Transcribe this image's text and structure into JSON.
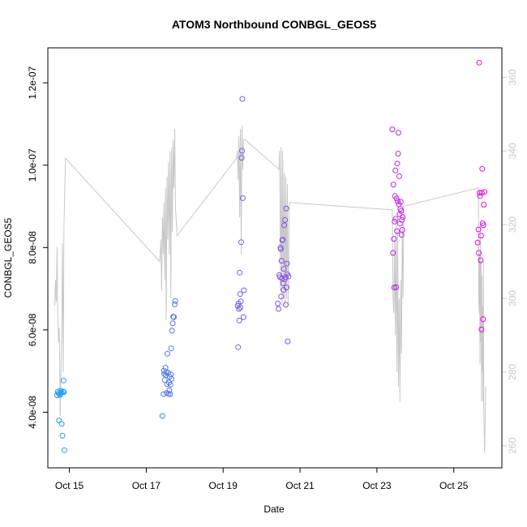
{
  "chart_data": {
    "type": "scatter",
    "title": "ATOM3 Northbound CONBGL_GEOS5",
    "xlabel": "Date",
    "ylabel": "CONBGL_GEOS5",
    "x_unit": "days (Oct)",
    "xlim": [
      14.44,
      26.25
    ],
    "ylim": [
      2.65e-08,
      1.285e-07
    ],
    "y2lim": [
      254.0,
      368.0
    ],
    "x_ticks": [
      15,
      17,
      19,
      21,
      23,
      25
    ],
    "x_tick_labels": [
      "Oct 15",
      "Oct 17",
      "Oct 19",
      "Oct 21",
      "Oct 23",
      "Oct 25"
    ],
    "y_ticks": [
      4e-08,
      6e-08,
      8e-08,
      1e-07,
      1.2e-07
    ],
    "y_tick_labels": [
      "4.0e-08",
      "6.0e-08",
      "8.0e-08",
      "1.0e-07",
      "1.2e-07"
    ],
    "y2_ticks": [
      260,
      280,
      300,
      320,
      340,
      360
    ],
    "y2_tick_labels": [
      "260",
      "280",
      "300",
      "320",
      "340",
      "360"
    ],
    "grid": false,
    "legend": "none",
    "series": [
      {
        "name": "CONBGL_GEOS5",
        "kind": "points",
        "color_from": "#1aa3ee",
        "color_to": "#f000e0",
        "points": [
          [
            14.68,
            4.41e-08
          ],
          [
            14.7,
            4.5e-08
          ],
          [
            14.72,
            4.46e-08
          ],
          [
            14.73,
            3.8e-08
          ],
          [
            14.75,
            4.42e-08
          ],
          [
            14.77,
            4.52e-08
          ],
          [
            14.78,
            4.45e-08
          ],
          [
            14.8,
            4.48e-08
          ],
          [
            14.8,
            3.72e-08
          ],
          [
            14.82,
            3.43e-08
          ],
          [
            14.84,
            4.5e-08
          ],
          [
            14.85,
            4.77e-08
          ],
          [
            14.86,
            4.49e-08
          ],
          [
            14.87,
            3.08e-08
          ],
          [
            17.42,
            3.91e-08
          ],
          [
            17.45,
            4.44e-08
          ],
          [
            17.46,
            5.01e-08
          ],
          [
            17.47,
            4.93e-08
          ],
          [
            17.48,
            4.78e-08
          ],
          [
            17.5,
            5.08e-08
          ],
          [
            17.51,
            4.9e-08
          ],
          [
            17.52,
            4.97e-08
          ],
          [
            17.53,
            4.47e-08
          ],
          [
            17.54,
            4.68e-08
          ],
          [
            17.55,
            5.42e-08
          ],
          [
            17.57,
            4.96e-08
          ],
          [
            17.58,
            4.45e-08
          ],
          [
            17.59,
            4.72e-08
          ],
          [
            17.6,
            4.53e-08
          ],
          [
            17.61,
            4.86e-08
          ],
          [
            17.62,
            4.44e-08
          ],
          [
            17.63,
            4.67e-08
          ],
          [
            17.64,
            4.92e-08
          ],
          [
            17.65,
            5.55e-08
          ],
          [
            17.66,
            4.81e-08
          ],
          [
            17.67,
            5.98e-08
          ],
          [
            17.69,
            6.16e-08
          ],
          [
            17.7,
            6.32e-08
          ],
          [
            17.72,
            6.31e-08
          ],
          [
            17.74,
            6.62e-08
          ],
          [
            17.75,
            6.7e-08
          ],
          [
            19.38,
            6.58e-08
          ],
          [
            19.39,
            5.58e-08
          ],
          [
            19.4,
            6.64e-08
          ],
          [
            19.41,
            6.51e-08
          ],
          [
            19.42,
            6.23e-08
          ],
          [
            19.43,
            7.39e-08
          ],
          [
            19.44,
            6.87e-08
          ],
          [
            19.45,
            6.54e-08
          ],
          [
            19.46,
            6.69e-08
          ],
          [
            19.47,
            8.13e-08
          ],
          [
            19.48,
            1.018e-07
          ],
          [
            19.49,
            1.035e-07
          ],
          [
            19.5,
            1.161e-07
          ],
          [
            19.51,
            9.2e-08
          ],
          [
            19.53,
            6.31e-08
          ],
          [
            19.54,
            6.96e-08
          ],
          [
            20.42,
            6.64e-08
          ],
          [
            20.44,
            6.51e-08
          ],
          [
            20.46,
            7.33e-08
          ],
          [
            20.48,
            7.28e-08
          ],
          [
            20.49,
            8e-08
          ],
          [
            20.5,
            7.96e-08
          ],
          [
            20.51,
            6.81e-08
          ],
          [
            20.52,
            7.68e-08
          ],
          [
            20.53,
            7.25e-08
          ],
          [
            20.54,
            8.18e-08
          ],
          [
            20.55,
            8.19e-08
          ],
          [
            20.56,
            7.13e-08
          ],
          [
            20.57,
            6.97e-08
          ],
          [
            20.58,
            7.48e-08
          ],
          [
            20.59,
            8.54e-08
          ],
          [
            20.6,
            7.23e-08
          ],
          [
            20.61,
            8.67e-08
          ],
          [
            20.62,
            7.28e-08
          ],
          [
            20.63,
            6.61e-08
          ],
          [
            20.64,
            8.95e-08
          ],
          [
            20.65,
            7.03e-08
          ],
          [
            20.66,
            7.61e-08
          ],
          [
            20.67,
            7.35e-08
          ],
          [
            20.68,
            5.72e-08
          ],
          [
            20.7,
            7.3e-08
          ],
          [
            23.4,
            1.087e-07
          ],
          [
            23.42,
            7.87e-08
          ],
          [
            23.43,
            9.53e-08
          ],
          [
            23.44,
            8.21e-08
          ],
          [
            23.45,
            7.03e-08
          ],
          [
            23.46,
            8.63e-08
          ],
          [
            23.47,
            9.25e-08
          ],
          [
            23.48,
            9.87e-08
          ],
          [
            23.49,
            8.7e-08
          ],
          [
            23.5,
            7.04e-08
          ],
          [
            23.51,
            9.19e-08
          ],
          [
            23.52,
            8.4e-08
          ],
          [
            23.53,
            1.004e-07
          ],
          [
            23.54,
            9.12e-08
          ],
          [
            23.55,
            1.028e-07
          ],
          [
            23.56,
            1.079e-07
          ],
          [
            23.57,
            9.05e-08
          ],
          [
            23.58,
            9.73e-08
          ],
          [
            23.59,
            8.81e-08
          ],
          [
            23.6,
            8.58e-08
          ],
          [
            23.61,
            8.94e-08
          ],
          [
            23.62,
            9.11e-08
          ],
          [
            23.63,
            8.89e-08
          ],
          [
            23.64,
            8.31e-08
          ],
          [
            23.65,
            8.67e-08
          ],
          [
            23.66,
            8.43e-08
          ],
          [
            23.67,
            8.74e-08
          ],
          [
            25.62,
            8.12e-08
          ],
          [
            25.64,
            8.44e-08
          ],
          [
            25.65,
            7.87e-08
          ],
          [
            25.66,
            1.249e-07
          ],
          [
            25.67,
            9.33e-08
          ],
          [
            25.68,
            9.25e-08
          ],
          [
            25.7,
            7.69e-08
          ],
          [
            25.71,
            8.29e-08
          ],
          [
            25.72,
            6.01e-08
          ],
          [
            25.73,
            9.33e-08
          ],
          [
            25.74,
            9.91e-08
          ],
          [
            25.75,
            8.59e-08
          ],
          [
            25.76,
            6.26e-08
          ],
          [
            25.77,
            8.54e-08
          ],
          [
            25.78,
            9.04e-08
          ],
          [
            25.8,
            9.35e-08
          ]
        ]
      },
      {
        "name": "secondary-trace",
        "kind": "line",
        "axis": "right",
        "color": "#c8c8c8",
        "points": [
          [
            14.62,
            298
          ],
          [
            14.64,
            305
          ],
          [
            14.66,
            299
          ],
          [
            14.68,
            314
          ],
          [
            14.7,
            295
          ],
          [
            14.72,
            288
          ],
          [
            14.74,
            292
          ],
          [
            14.76,
            268
          ],
          [
            14.78,
            279
          ],
          [
            14.8,
            290
          ],
          [
            14.82,
            315
          ],
          [
            14.84,
            280
          ],
          [
            14.86,
            320
          ],
          [
            14.9,
            338
          ],
          [
            17.35,
            310
          ],
          [
            17.38,
            316
          ],
          [
            17.4,
            302
          ],
          [
            17.42,
            322
          ],
          [
            17.44,
            312
          ],
          [
            17.46,
            326
          ],
          [
            17.48,
            305
          ],
          [
            17.5,
            330
          ],
          [
            17.52,
            294
          ],
          [
            17.54,
            333
          ],
          [
            17.56,
            316
          ],
          [
            17.58,
            337
          ],
          [
            17.6,
            312
          ],
          [
            17.62,
            340
          ],
          [
            17.64,
            300
          ],
          [
            17.66,
            341
          ],
          [
            17.68,
            318
          ],
          [
            17.7,
            343
          ],
          [
            17.72,
            330
          ],
          [
            17.74,
            346
          ],
          [
            17.76,
            325
          ],
          [
            17.8,
            317
          ],
          [
            19.35,
            338
          ],
          [
            19.37,
            340
          ],
          [
            19.39,
            332
          ],
          [
            19.41,
            344
          ],
          [
            19.43,
            322
          ],
          [
            19.45,
            346
          ],
          [
            19.47,
            312
          ],
          [
            19.49,
            347
          ],
          [
            19.51,
            335
          ],
          [
            19.53,
            343
          ],
          [
            19.58,
            343
          ],
          [
            20.45,
            335
          ],
          [
            20.47,
            340
          ],
          [
            20.49,
            302
          ],
          [
            20.51,
            341
          ],
          [
            20.53,
            298
          ],
          [
            20.55,
            340
          ],
          [
            20.57,
            300
          ],
          [
            20.59,
            334
          ],
          [
            20.61,
            298
          ],
          [
            20.63,
            333
          ],
          [
            20.65,
            300
          ],
          [
            20.67,
            331
          ],
          [
            20.69,
            298
          ],
          [
            20.72,
            326
          ],
          [
            23.4,
            324
          ],
          [
            23.42,
            300
          ],
          [
            23.44,
            296
          ],
          [
            23.46,
            316
          ],
          [
            23.48,
            290
          ],
          [
            23.5,
            321
          ],
          [
            23.52,
            280
          ],
          [
            23.54,
            318
          ],
          [
            23.56,
            276
          ],
          [
            23.58,
            300
          ],
          [
            23.6,
            272
          ],
          [
            23.62,
            305
          ],
          [
            23.64,
            285
          ],
          [
            23.66,
            320
          ],
          [
            23.68,
            300
          ],
          [
            23.7,
            325
          ],
          [
            25.64,
            330
          ],
          [
            25.65,
            300
          ],
          [
            25.66,
            296
          ],
          [
            25.67,
            312
          ],
          [
            25.68,
            282
          ],
          [
            25.69,
            320
          ],
          [
            25.7,
            288
          ],
          [
            25.71,
            310
          ],
          [
            25.72,
            272
          ],
          [
            25.73,
            306
          ],
          [
            25.74,
            280
          ],
          [
            25.75,
            298
          ],
          [
            25.76,
            272
          ],
          [
            25.77,
            310
          ],
          [
            25.78,
            270
          ],
          [
            25.8,
            258
          ],
          [
            25.83,
            276
          ]
        ]
      }
    ]
  }
}
